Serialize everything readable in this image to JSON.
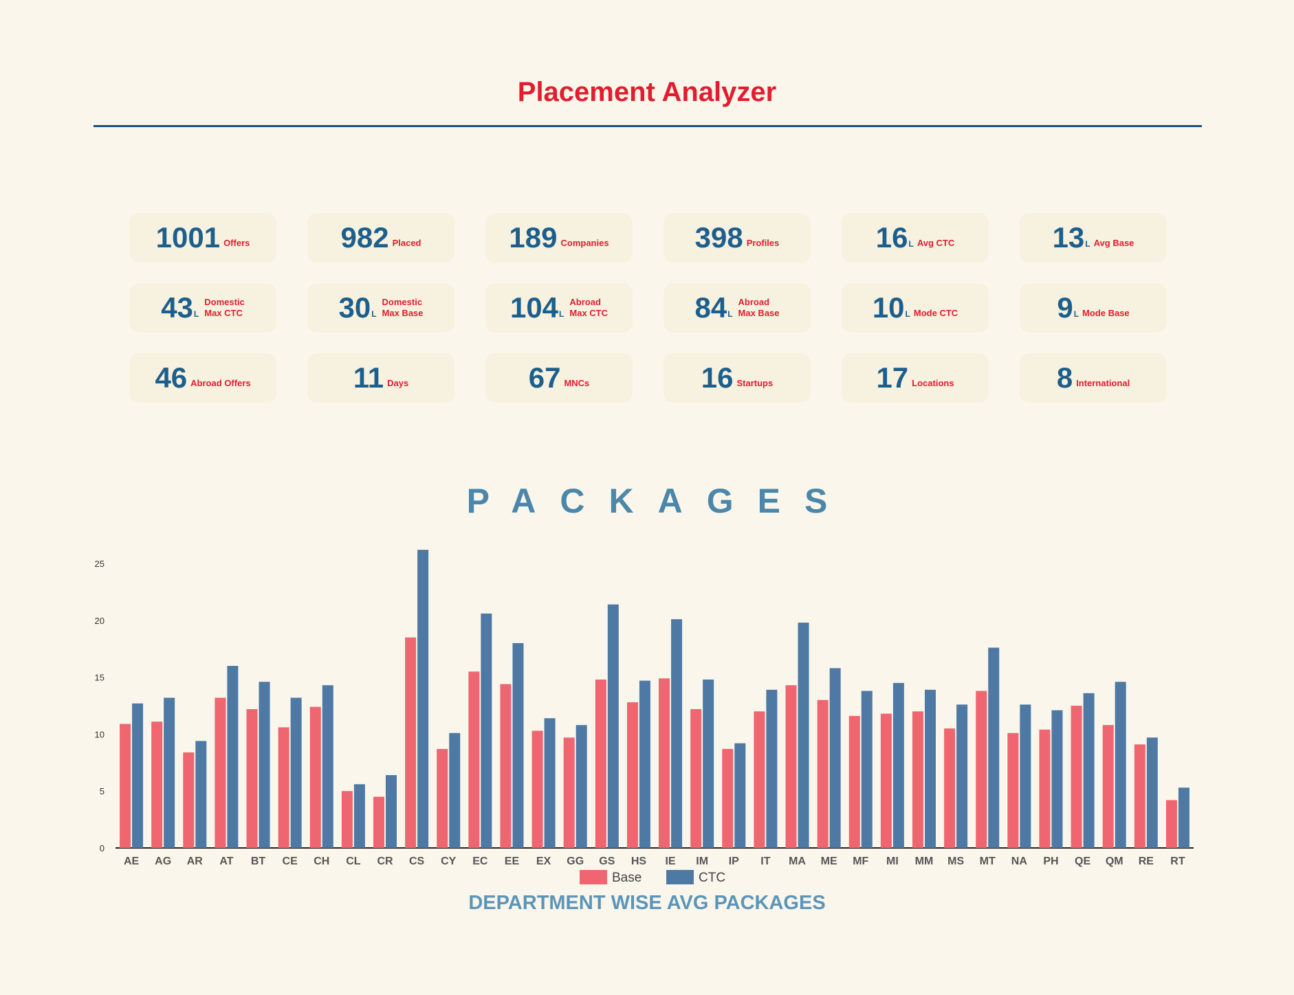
{
  "header": {
    "title": "Placement Analyzer"
  },
  "stats": [
    {
      "value": "1001",
      "unit": "",
      "label": "Offers"
    },
    {
      "value": "982",
      "unit": "",
      "label": "Placed"
    },
    {
      "value": "189",
      "unit": "",
      "label": "Companies"
    },
    {
      "value": "398",
      "unit": "",
      "label": "Profiles"
    },
    {
      "value": "16",
      "unit": "L",
      "label": "Avg CTC"
    },
    {
      "value": "13",
      "unit": "L",
      "label": "Avg Base"
    },
    {
      "value": "43",
      "unit": "L",
      "label": "Domestic\nMax CTC"
    },
    {
      "value": "30",
      "unit": "L",
      "label": "Domestic\nMax Base"
    },
    {
      "value": "104",
      "unit": "L",
      "label": "Abroad\nMax CTC"
    },
    {
      "value": "84",
      "unit": "L",
      "label": "Abroad\nMax Base"
    },
    {
      "value": "10",
      "unit": "L",
      "label": "Mode CTC"
    },
    {
      "value": "9",
      "unit": "L",
      "label": "Mode Base"
    },
    {
      "value": "46",
      "unit": "",
      "label": "Abroad Offers"
    },
    {
      "value": "11",
      "unit": "",
      "label": "Days"
    },
    {
      "value": "67",
      "unit": "",
      "label": "MNCs"
    },
    {
      "value": "16",
      "unit": "",
      "label": "Startups"
    },
    {
      "value": "17",
      "unit": "",
      "label": "Locations"
    },
    {
      "value": "8",
      "unit": "",
      "label": "International"
    }
  ],
  "section": {
    "title": "PACKAGES"
  },
  "chart_data": {
    "type": "bar",
    "title": "DEPARTMENT WISE AVG PACKAGES",
    "xlabel": "",
    "ylabel": "",
    "ylim": [
      0,
      25
    ],
    "yticks": [
      0,
      5,
      10,
      15,
      20,
      25
    ],
    "legend": "bottom",
    "grid": false,
    "categories": [
      "AE",
      "AG",
      "AR",
      "AT",
      "BT",
      "CE",
      "CH",
      "CL",
      "CR",
      "CS",
      "CY",
      "EC",
      "EE",
      "EX",
      "GG",
      "GS",
      "HS",
      "IE",
      "IM",
      "IP",
      "IT",
      "MA",
      "ME",
      "MF",
      "MI",
      "MM",
      "MS",
      "MT",
      "NA",
      "PH",
      "QE",
      "QM",
      "RE",
      "RT"
    ],
    "series": [
      {
        "name": "Base",
        "color": "#ef6570",
        "values": [
          10.9,
          11.1,
          8.4,
          13.2,
          12.2,
          10.6,
          12.4,
          5.0,
          4.5,
          18.5,
          8.7,
          15.5,
          14.4,
          10.3,
          9.7,
          14.8,
          12.8,
          14.9,
          12.2,
          8.7,
          12.0,
          14.3,
          13.0,
          11.6,
          11.8,
          12.0,
          10.5,
          13.8,
          10.1,
          10.4,
          12.5,
          10.8,
          9.1,
          4.2
        ]
      },
      {
        "name": "CTC",
        "color": "#4d79a4",
        "values": [
          12.7,
          13.2,
          9.4,
          16.0,
          14.6,
          13.2,
          14.3,
          5.6,
          6.4,
          26.2,
          10.1,
          20.6,
          18.0,
          11.4,
          10.8,
          21.4,
          14.7,
          20.1,
          14.8,
          9.2,
          13.9,
          19.8,
          15.8,
          13.8,
          14.5,
          13.9,
          12.6,
          17.6,
          12.6,
          12.1,
          13.6,
          14.6,
          9.7,
          5.3
        ]
      }
    ]
  }
}
